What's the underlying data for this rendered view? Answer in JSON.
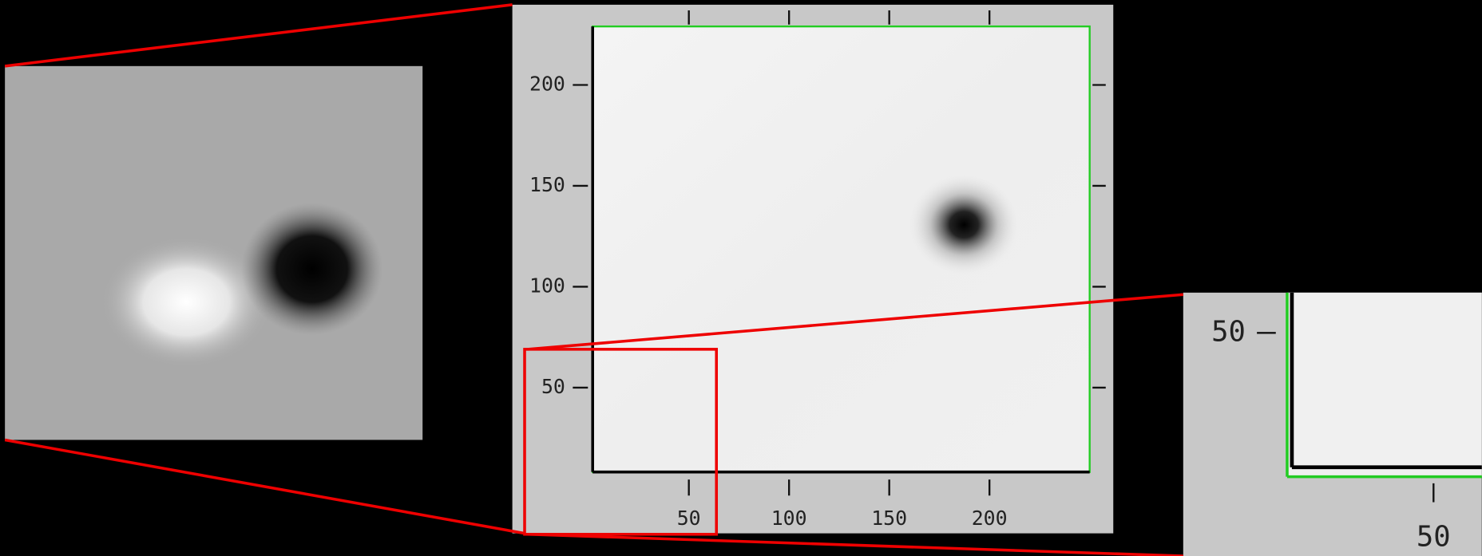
{
  "main_view": {
    "xlim": [
      2,
      250
    ],
    "ylim": [
      4,
      229
    ],
    "xticks": [
      50,
      100,
      150,
      200
    ],
    "yticks": [
      50,
      100,
      150,
      200
    ]
  },
  "zoom_view": {
    "xlim": [
      -35,
      62
    ],
    "ylim": [
      -27,
      66
    ],
    "xticks": [
      50
    ],
    "yticks": [
      50
    ]
  }
}
